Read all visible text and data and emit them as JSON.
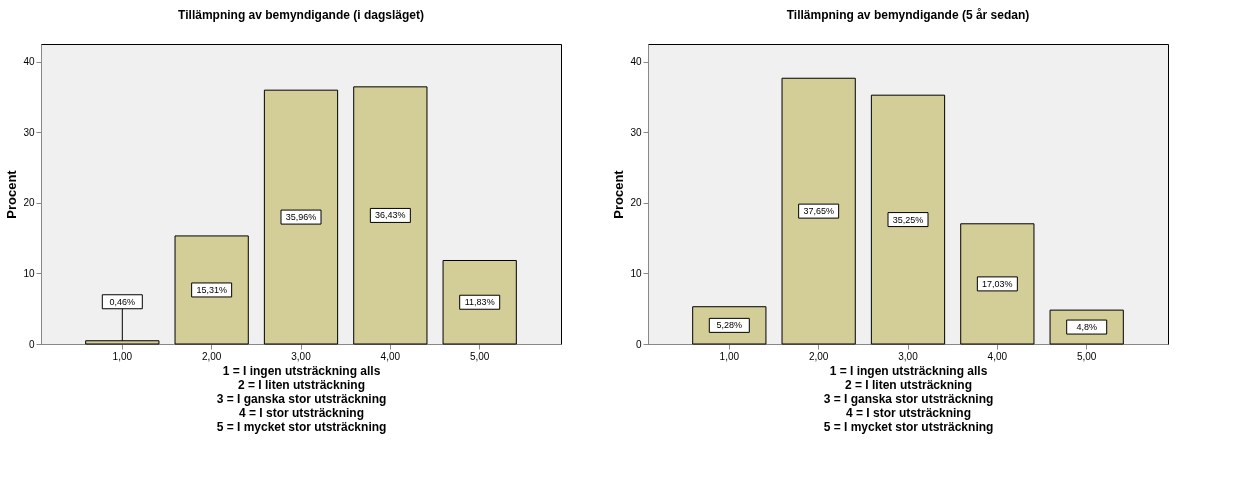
{
  "chart_data": [
    {
      "type": "bar",
      "title": "Tillämpning av bemyndigande (i dagsläget)",
      "xlabel": "1 = I ingen utsträckning alls\n2 = I liten utsträckning\n3 = I ganska stor utsträckning\n4 = I stor utsträckning\n5 = I mycket stor utsträckning",
      "ylabel": "Procent",
      "categories": [
        "1,00",
        "2,00",
        "3,00",
        "4,00",
        "5,00"
      ],
      "values": [
        0.46,
        15.31,
        35.96,
        36.43,
        11.83
      ],
      "value_labels": [
        "0,46%",
        "15,31%",
        "35,96%",
        "36,43%",
        "11,83%"
      ],
      "color": "#d3ce97",
      "ylim": [
        0,
        42.5
      ],
      "yticks": [
        0,
        10,
        20,
        30,
        40
      ],
      "grid": false
    },
    {
      "type": "bar",
      "title": "Tillämpning av bemyndigande (5 år sedan)",
      "xlabel": "1 = I ingen utsträckning alls\n2 = I liten utsträckning\n3 = I ganska stor utsträckning\n4 = I stor utsträckning\n5 = I mycket stor utsträckning",
      "ylabel": "Procent",
      "categories": [
        "1,00",
        "2,00",
        "3,00",
        "4,00",
        "5,00"
      ],
      "values": [
        5.28,
        37.65,
        35.25,
        17.03,
        4.8
      ],
      "value_labels": [
        "5,28%",
        "37,65%",
        "35,25%",
        "17,03%",
        "4,8%"
      ],
      "color": "#d3ce97",
      "ylim": [
        0,
        42.5
      ],
      "yticks": [
        0,
        10,
        20,
        30,
        40
      ],
      "grid": false
    }
  ]
}
